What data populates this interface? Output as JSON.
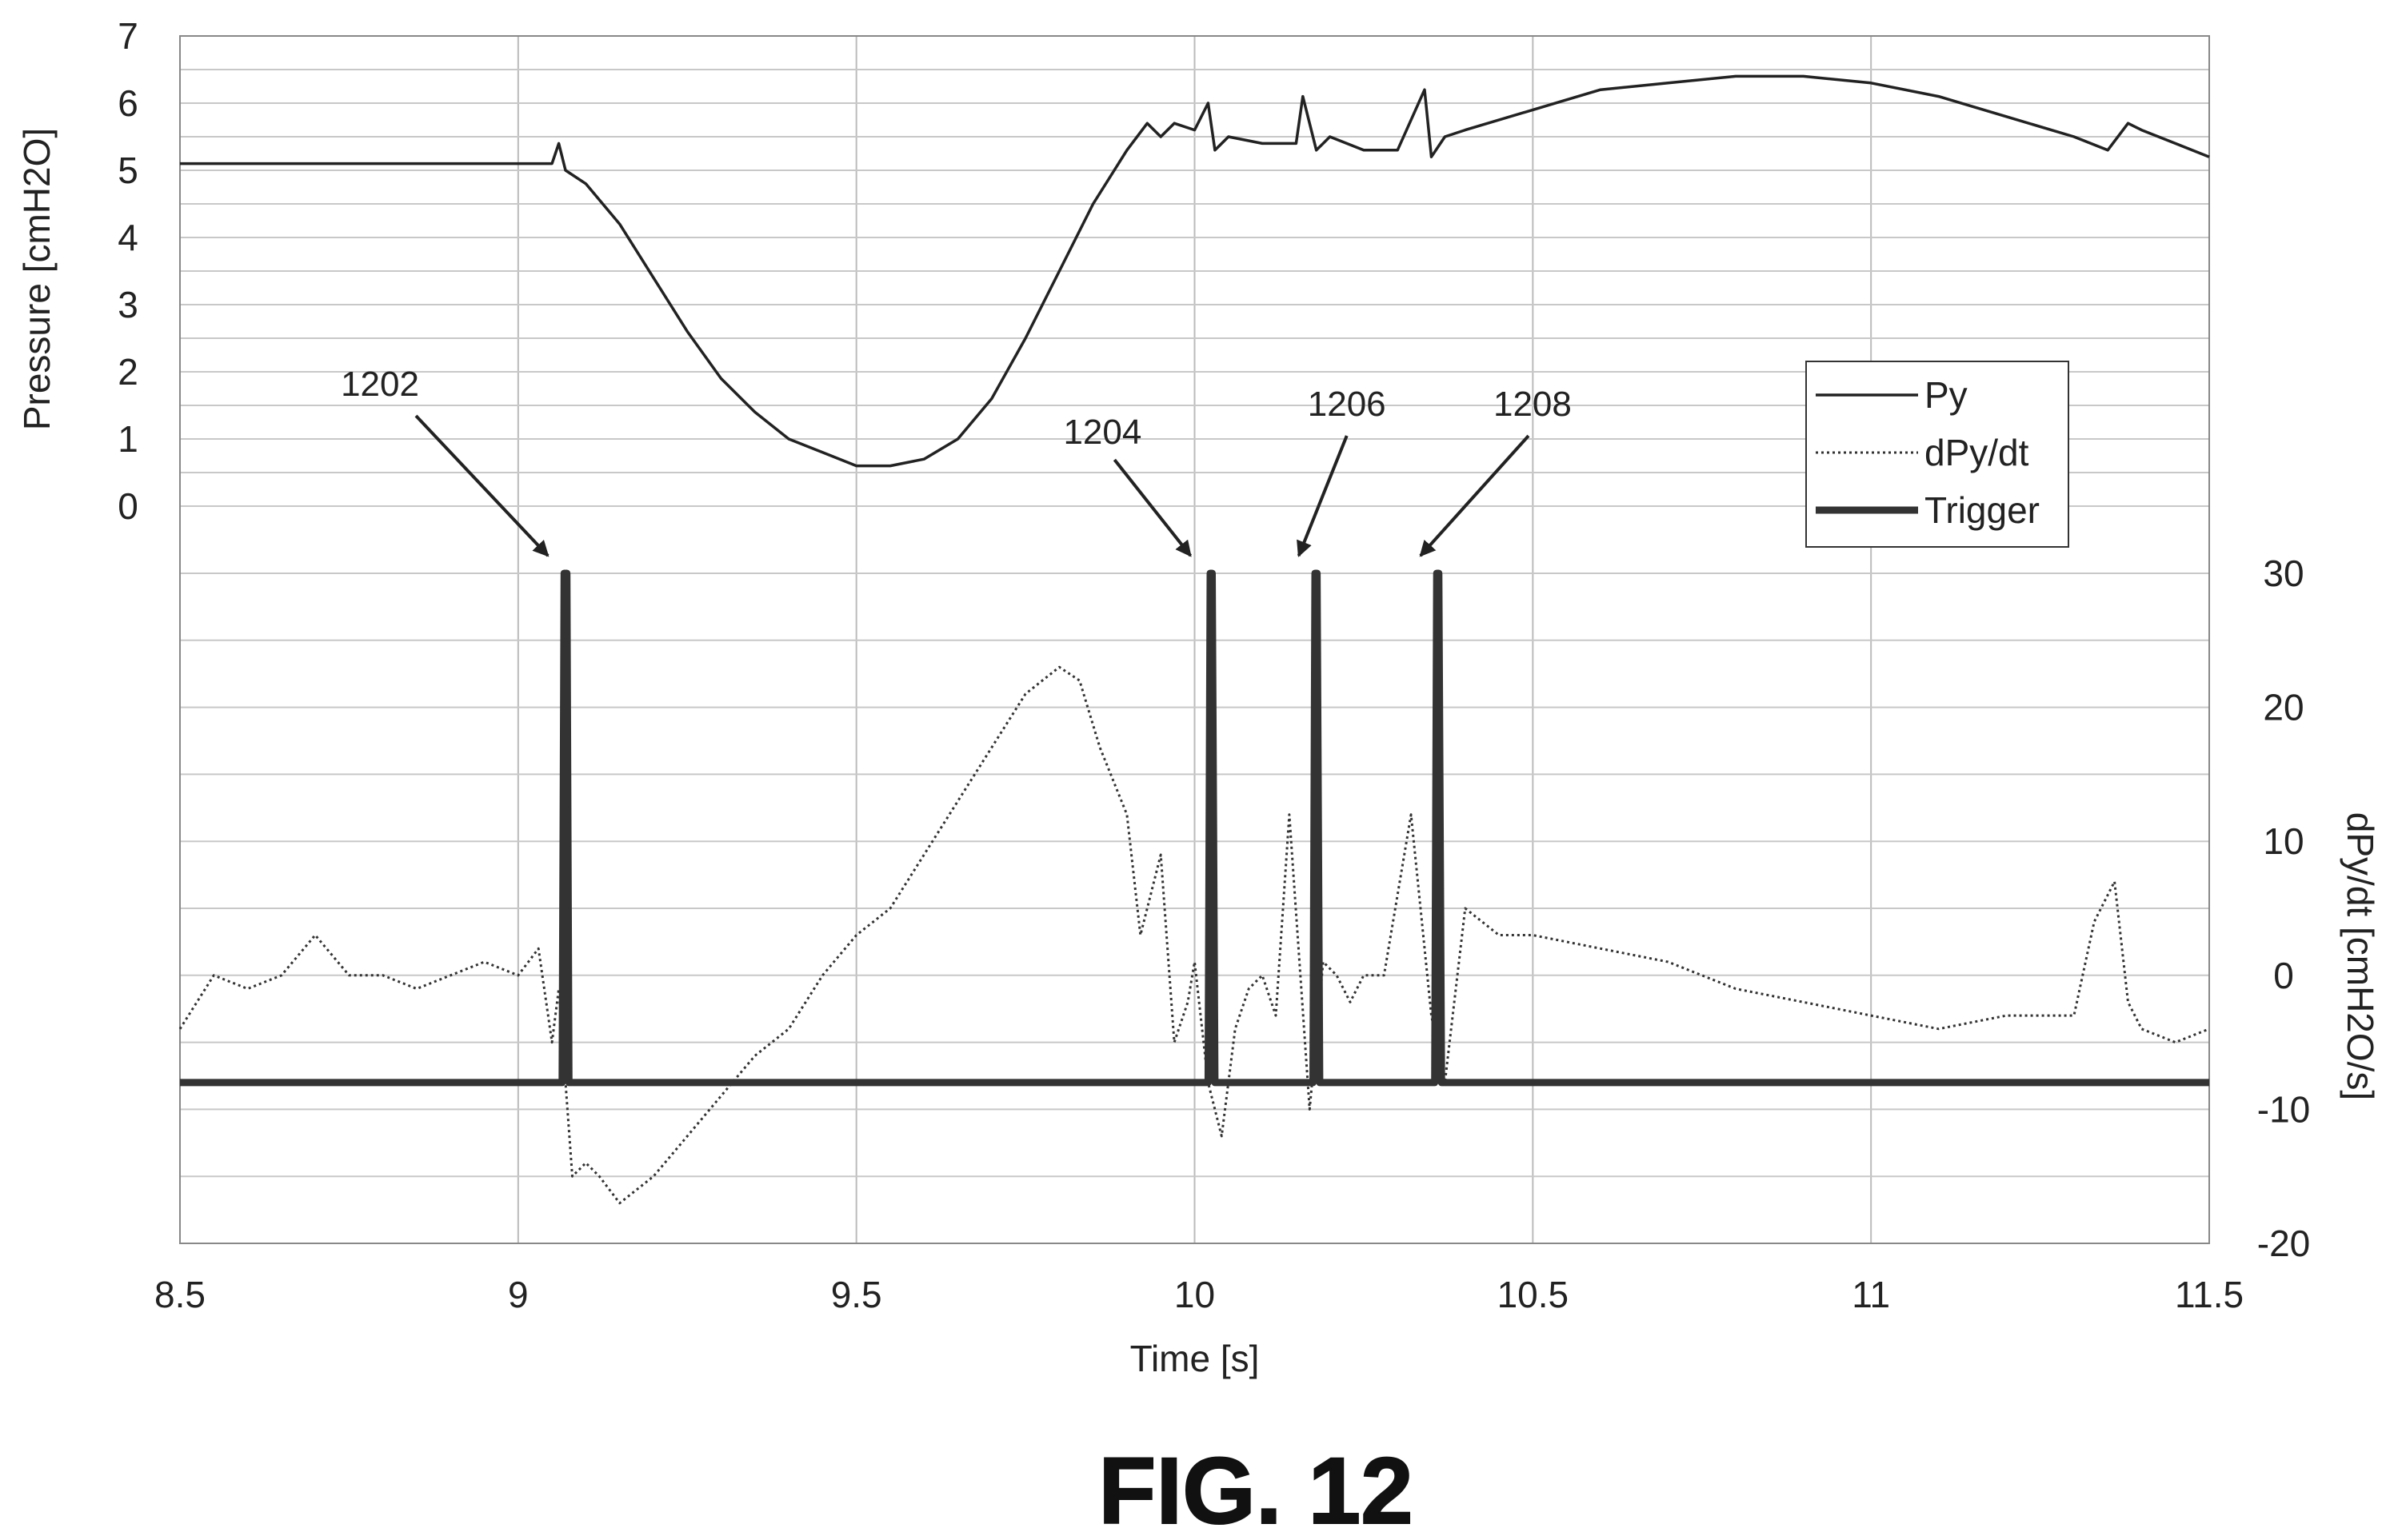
{
  "figure_label": "FIG. 12",
  "chart_data": {
    "type": "line",
    "xlabel": "Time [s]",
    "ylabel_left": "Pressure [cmH2O]",
    "ylabel_right": "dPy/dt [cmH2O/s]",
    "xlim": [
      8.5,
      11.5
    ],
    "x_ticks": [
      "8.5",
      "9",
      "9.5",
      "10",
      "10.5",
      "11",
      "11.5"
    ],
    "y_left_ticks": [
      "0",
      "1",
      "2",
      "3",
      "4",
      "5",
      "6",
      "7"
    ],
    "y_right_ticks": [
      "-20",
      "-10",
      "0",
      "10",
      "20",
      "30"
    ],
    "y_left_lim": [
      0,
      7
    ],
    "y_right_lim": [
      -20,
      30
    ],
    "grid": true,
    "legend_position": "upper-right",
    "legend": [
      "Py",
      "dPy/dt",
      "Trigger"
    ],
    "series": [
      {
        "name": "Py",
        "axis": "left",
        "style": "solid-thin",
        "x": [
          8.5,
          8.6,
          8.7,
          8.8,
          8.9,
          9.0,
          9.05,
          9.06,
          9.07,
          9.1,
          9.15,
          9.2,
          9.25,
          9.3,
          9.35,
          9.4,
          9.45,
          9.5,
          9.55,
          9.6,
          9.65,
          9.7,
          9.75,
          9.8,
          9.85,
          9.9,
          9.93,
          9.95,
          9.97,
          10.0,
          10.02,
          10.03,
          10.05,
          10.1,
          10.15,
          10.16,
          10.18,
          10.2,
          10.25,
          10.3,
          10.34,
          10.35,
          10.37,
          10.4,
          10.5,
          10.6,
          10.7,
          10.8,
          10.9,
          11.0,
          11.1,
          11.2,
          11.3,
          11.35,
          11.38,
          11.4,
          11.45,
          11.5
        ],
        "y": [
          5.1,
          5.1,
          5.1,
          5.1,
          5.1,
          5.1,
          5.1,
          5.4,
          5.0,
          4.8,
          4.2,
          3.4,
          2.6,
          1.9,
          1.4,
          1.0,
          0.8,
          0.6,
          0.6,
          0.7,
          1.0,
          1.6,
          2.5,
          3.5,
          4.5,
          5.3,
          5.7,
          5.5,
          5.7,
          5.6,
          6.0,
          5.3,
          5.5,
          5.4,
          5.4,
          6.1,
          5.3,
          5.5,
          5.3,
          5.3,
          6.2,
          5.2,
          5.5,
          5.6,
          5.9,
          6.2,
          6.3,
          6.4,
          6.4,
          6.3,
          6.1,
          5.8,
          5.5,
          5.3,
          5.7,
          5.6,
          5.4,
          5.2
        ]
      },
      {
        "name": "dPy/dt",
        "axis": "right",
        "style": "dotted",
        "x": [
          8.5,
          8.55,
          8.6,
          8.65,
          8.7,
          8.75,
          8.8,
          8.85,
          8.9,
          8.95,
          9.0,
          9.03,
          9.05,
          9.06,
          9.07,
          9.08,
          9.1,
          9.12,
          9.15,
          9.2,
          9.25,
          9.3,
          9.35,
          9.4,
          9.45,
          9.5,
          9.55,
          9.6,
          9.65,
          9.7,
          9.75,
          9.8,
          9.83,
          9.86,
          9.9,
          9.92,
          9.95,
          9.97,
          9.99,
          10.0,
          10.02,
          10.04,
          10.06,
          10.08,
          10.1,
          10.12,
          10.14,
          10.17,
          10.19,
          10.21,
          10.23,
          10.25,
          10.28,
          10.32,
          10.35,
          10.37,
          10.4,
          10.45,
          10.5,
          10.6,
          10.7,
          10.8,
          10.9,
          11.0,
          11.1,
          11.2,
          11.3,
          11.33,
          11.36,
          11.38,
          11.4,
          11.45,
          11.5
        ],
        "y": [
          -4,
          0,
          -1,
          0,
          3,
          0,
          0,
          -1,
          0,
          1,
          0,
          2,
          -5,
          -1,
          -8,
          -15,
          -14,
          -15,
          -17,
          -15,
          -12,
          -9,
          -6,
          -4,
          0,
          3,
          5,
          9,
          13,
          17,
          21,
          23,
          22,
          17,
          12,
          3,
          9,
          -5,
          -2,
          1,
          -8,
          -12,
          -4,
          -1,
          0,
          -3,
          12,
          -10,
          1,
          0,
          -2,
          0,
          0,
          12,
          -3,
          -8,
          5,
          3,
          3,
          2,
          1,
          -1,
          -2,
          -3,
          -4,
          -3,
          -3,
          4,
          7,
          -2,
          -4,
          -5,
          -4
        ]
      },
      {
        "name": "Trigger",
        "axis": "right",
        "style": "solid-thick",
        "x": [
          8.5,
          9.065,
          9.068,
          9.072,
          9.075,
          10.02,
          10.023,
          10.026,
          10.03,
          10.175,
          10.178,
          10.181,
          10.185,
          10.355,
          10.358,
          10.361,
          10.365,
          11.5
        ],
        "y": [
          -8,
          -8,
          30,
          30,
          -8,
          -8,
          30,
          30,
          -8,
          -8,
          30,
          30,
          -8,
          -8,
          30,
          30,
          -8,
          -8
        ]
      }
    ],
    "annotations": [
      {
        "label": "1202",
        "x": 9.07
      },
      {
        "label": "1204",
        "x": 10.02
      },
      {
        "label": "1206",
        "x": 10.18
      },
      {
        "label": "1208",
        "x": 10.36
      }
    ]
  }
}
